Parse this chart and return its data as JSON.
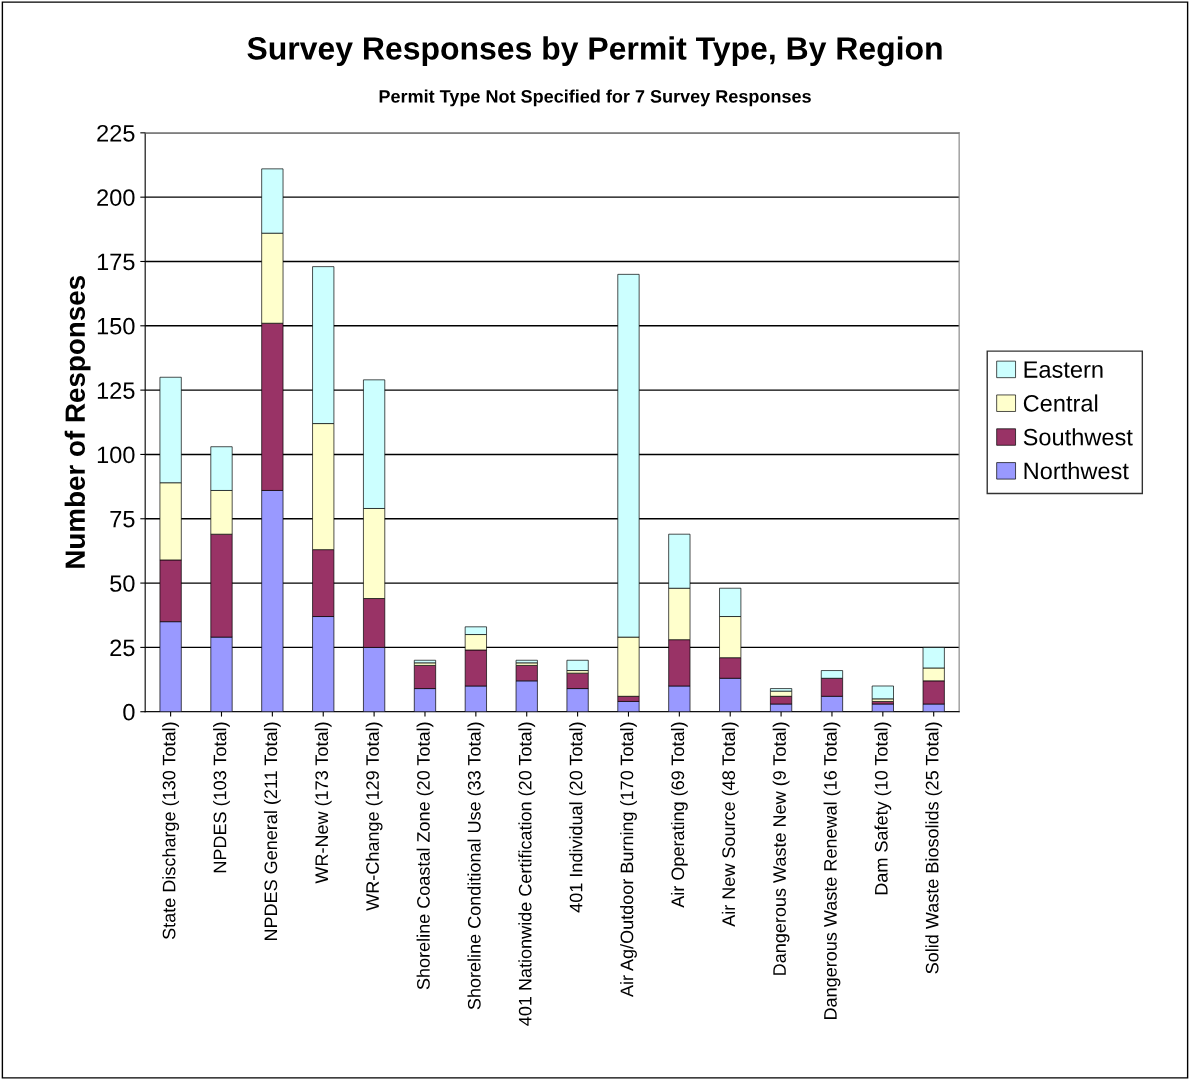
{
  "chart_data": {
    "type": "bar",
    "stacked": true,
    "title": "Survey Responses by Permit Type, By Region",
    "subtitle": "Permit Type Not Specified for 7 Survey Responses",
    "ylabel": "Number of Responses",
    "categories": [
      "State Discharge (130 Total)",
      "NPDES (103 Total)",
      "NPDES General (211 Total)",
      "WR-New (173 Total)",
      "WR-Change (129 Total)",
      "Shoreline Coastal Zone (20 Total)",
      "Shoreline Conditional Use (33 Total)",
      "401 Nationwide Certification (20 Total)",
      "401 Individual (20 Total)",
      "Air Ag/Outdoor Burning (170 Total)",
      "Air Operating (69 Total)",
      "Air New Source (48 Total)",
      "Dangerous Waste New (9 Total)",
      "Dangerous Waste Renewal (16 Total)",
      "Dam Safety (10 Total)",
      "Solid Waste Biosolids (25 Total)"
    ],
    "series": [
      {
        "name": "Northwest",
        "color": "#9999ff",
        "values": [
          35,
          29,
          86,
          37,
          25,
          9,
          10,
          12,
          9,
          4,
          10,
          13,
          3,
          6,
          3,
          3
        ]
      },
      {
        "name": "Southwest",
        "color": "#993366",
        "values": [
          24,
          40,
          65,
          26,
          19,
          9,
          14,
          6,
          6,
          2,
          18,
          8,
          3,
          7,
          1,
          9
        ]
      },
      {
        "name": "Central",
        "color": "#ffffcc",
        "values": [
          30,
          17,
          35,
          49,
          35,
          1,
          6,
          1,
          1,
          23,
          20,
          16,
          2,
          null,
          1,
          5
        ]
      },
      {
        "name": "Eastern",
        "color": "#ccffff",
        "values": [
          41,
          17,
          25,
          61,
          50,
          1,
          3,
          1,
          4,
          141,
          21,
          11,
          1,
          3,
          5,
          8
        ]
      }
    ],
    "ylim": [
      0,
      225
    ],
    "yticks": [
      0,
      25,
      50,
      75,
      100,
      125,
      150,
      175,
      200,
      225
    ],
    "grid": "y",
    "legend": "right"
  }
}
